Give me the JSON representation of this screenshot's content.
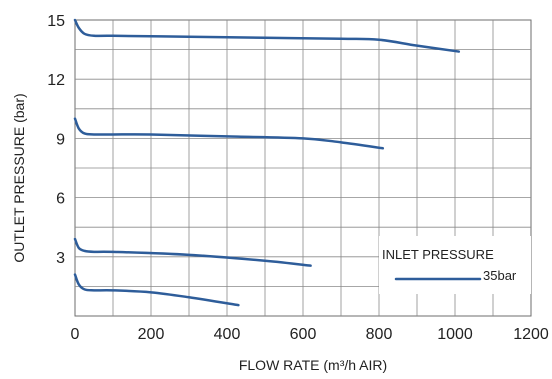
{
  "chart_data": {
    "type": "line",
    "xlabel": "FLOW RATE (m³/h AIR)",
    "ylabel": "OUTLET PRESSURE (bar)",
    "xlim": [
      0,
      1200
    ],
    "ylim": [
      0,
      15
    ],
    "x_ticks": [
      0,
      200,
      400,
      600,
      800,
      1000,
      1200
    ],
    "y_ticks": [
      3,
      6,
      9,
      12,
      15
    ],
    "x_grid_step": 100,
    "y_grid_step": 1.5,
    "grid": true,
    "line_color": "#2e5d9a",
    "legend": {
      "title": "INLET PRESSURE",
      "entries": [
        {
          "label": "35bar",
          "color": "#2e5d9a"
        }
      ],
      "placement": "bottom-right"
    },
    "series": [
      {
        "x": [
          0,
          10,
          25,
          50,
          100,
          300,
          500,
          700,
          800,
          900,
          1010
        ],
        "y": [
          15.0,
          14.6,
          14.3,
          14.2,
          14.2,
          14.15,
          14.1,
          14.05,
          14.0,
          13.7,
          13.4
        ]
      },
      {
        "x": [
          0,
          10,
          25,
          50,
          100,
          200,
          400,
          600,
          700,
          810
        ],
        "y": [
          10.0,
          9.5,
          9.25,
          9.2,
          9.2,
          9.2,
          9.1,
          9.0,
          8.8,
          8.5
        ]
      },
      {
        "x": [
          0,
          10,
          25,
          50,
          100,
          300,
          500,
          620
        ],
        "y": [
          3.9,
          3.45,
          3.3,
          3.25,
          3.25,
          3.1,
          2.8,
          2.55
        ]
      },
      {
        "x": [
          0,
          10,
          25,
          50,
          100,
          200,
          300,
          430
        ],
        "y": [
          2.1,
          1.6,
          1.35,
          1.3,
          1.3,
          1.2,
          0.95,
          0.55
        ]
      }
    ]
  }
}
